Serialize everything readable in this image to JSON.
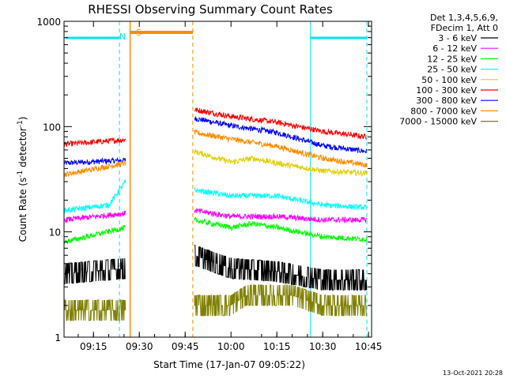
{
  "chart_data": {
    "type": "line",
    "title": "RHESSI Observing Summary Count Rates",
    "xlabel": "Start Time (17-Jan-07 09:05:22)",
    "ylabel_main": "Count Rate (s",
    "ylabel_sup1": "-1",
    "ylabel_mid": " detector",
    "ylabel_sup2": "-1",
    "ylabel_end": ")",
    "yscale": "log",
    "ylim": [
      1,
      1000
    ],
    "xlim": [
      "09:05:22",
      "10:46:00"
    ],
    "x_ticks": [
      "09:15",
      "09:30",
      "09:45",
      "10:00",
      "10:15",
      "10:30",
      "10:45"
    ],
    "y_ticks": [
      "1",
      "10",
      "100",
      "1000"
    ],
    "legend_header": [
      "Det 1,3,4,5,6,9,",
      "FDecim 1, Att 0"
    ],
    "legend_position": "right",
    "timestamp": "13-Oct-2021 20:28",
    "markers": {
      "s_label": "S",
      "n_label": "N",
      "s_color": "#ff8c00",
      "n_color": "#00e5ee"
    },
    "night_intervals": [
      [
        "09:05:22",
        "09:23:30"
      ],
      [
        "10:26:00",
        "10:46:00"
      ]
    ],
    "saa_interval": [
      "09:27:00",
      "09:47:30"
    ],
    "series": [
      {
        "name": "3 - 6 keV",
        "color": "#000000"
      },
      {
        "name": "6 - 12 keV",
        "color": "#ff00ff"
      },
      {
        "name": "12 - 25 keV",
        "color": "#00ff00"
      },
      {
        "name": "25 - 50 keV",
        "color": "#00ffff"
      },
      {
        "name": "50 - 100 keV",
        "color": "#e0d000"
      },
      {
        "name": "100 - 300 keV",
        "color": "#ff0000"
      },
      {
        "name": "300 - 800 keV",
        "color": "#0000ff"
      },
      {
        "name": "800 - 7000 keV",
        "color": "#ff8c00"
      },
      {
        "name": "7000 - 15000 keV",
        "color": "#808000"
      }
    ],
    "series_data": {
      "segment1_range": [
        "09:05:22",
        "09:25:30"
      ],
      "segment2_range": [
        "09:48:00",
        "10:44:30"
      ],
      "anchors": [
        {
          "name": "300 - 800 keV",
          "seg1": [
            [
              "09:05:22",
              45
            ],
            [
              "09:25:30",
              48
            ]
          ],
          "seg2": [
            [
              "09:48:00",
              120
            ],
            [
              "10:00:00",
              102
            ],
            [
              "10:15:00",
              88
            ],
            [
              "10:30:00",
              66
            ],
            [
              "10:44:30",
              58
            ]
          ]
        },
        {
          "name": "100 - 300 keV",
          "seg1": [
            [
              "09:05:22",
              68
            ],
            [
              "09:25:30",
              75
            ]
          ],
          "seg2": [
            [
              "09:48:00",
              145
            ],
            [
              "10:00:00",
              125
            ],
            [
              "10:15:00",
              110
            ],
            [
              "10:30:00",
              90
            ],
            [
              "10:44:30",
              80
            ]
          ]
        },
        {
          "name": "800 - 7000 keV",
          "seg1": [
            [
              "09:05:22",
              35
            ],
            [
              "09:25:30",
              45
            ]
          ],
          "seg2": [
            [
              "09:48:00",
              88
            ],
            [
              "10:00:00",
              76
            ],
            [
              "10:15:00",
              65
            ],
            [
              "10:30:00",
              50
            ],
            [
              "10:44:30",
              43
            ]
          ]
        },
        {
          "name": "50 - 100 keV",
          "seg1": [],
          "seg2": [
            [
              "09:48:00",
              58
            ],
            [
              "10:00:00",
              46
            ],
            [
              "10:07:00",
              50
            ],
            [
              "10:15:00",
              45
            ],
            [
              "10:30:00",
              38
            ],
            [
              "10:44:30",
              36
            ]
          ]
        },
        {
          "name": "25 - 50 keV",
          "seg1": [
            [
              "09:05:22",
              16
            ],
            [
              "09:20:00",
              18
            ],
            [
              "09:25:30",
              30
            ]
          ],
          "seg2": [
            [
              "09:48:00",
              25
            ],
            [
              "10:00:00",
              22
            ],
            [
              "10:15:00",
              22
            ],
            [
              "10:30:00",
              18
            ],
            [
              "10:44:30",
              17
            ]
          ]
        },
        {
          "name": "6 - 12 keV",
          "seg1": [
            [
              "09:05:22",
              13
            ],
            [
              "09:25:30",
              15
            ]
          ],
          "seg2": [
            [
              "09:48:00",
              16
            ],
            [
              "10:00:00",
              14
            ],
            [
              "10:15:00",
              14
            ],
            [
              "10:30:00",
              13
            ],
            [
              "10:44:30",
              13
            ]
          ]
        },
        {
          "name": "12 - 25 keV",
          "seg1": [
            [
              "09:05:22",
              8
            ],
            [
              "09:25:30",
              11
            ]
          ],
          "seg2": [
            [
              "09:48:00",
              13
            ],
            [
              "10:00:00",
              11
            ],
            [
              "10:07:00",
              12
            ],
            [
              "10:15:00",
              11
            ],
            [
              "10:30:00",
              9
            ],
            [
              "10:44:30",
              8.5
            ]
          ]
        },
        {
          "name": "3 - 6 keV",
          "seg1": [
            [
              "09:05:22",
              4
            ],
            [
              "09:25:30",
              4.5
            ]
          ],
          "seg2": [
            [
              "09:48:00",
              6
            ],
            [
              "10:00:00",
              4.5
            ],
            [
              "10:15:00",
              4.2
            ],
            [
              "10:30:00",
              3.5
            ],
            [
              "10:44:30",
              3.5
            ]
          ]
        },
        {
          "name": "7000 - 15000 keV",
          "seg1": [
            [
              "09:05:22",
              1.8
            ],
            [
              "09:25:30",
              1.8
            ]
          ],
          "seg2": [
            [
              "09:48:00",
              2
            ],
            [
              "10:00:00",
              2
            ],
            [
              "10:05:00",
              2.5
            ],
            [
              "10:20:00",
              2.5
            ],
            [
              "10:30:00",
              2
            ],
            [
              "10:44:30",
              2
            ]
          ]
        }
      ]
    }
  }
}
